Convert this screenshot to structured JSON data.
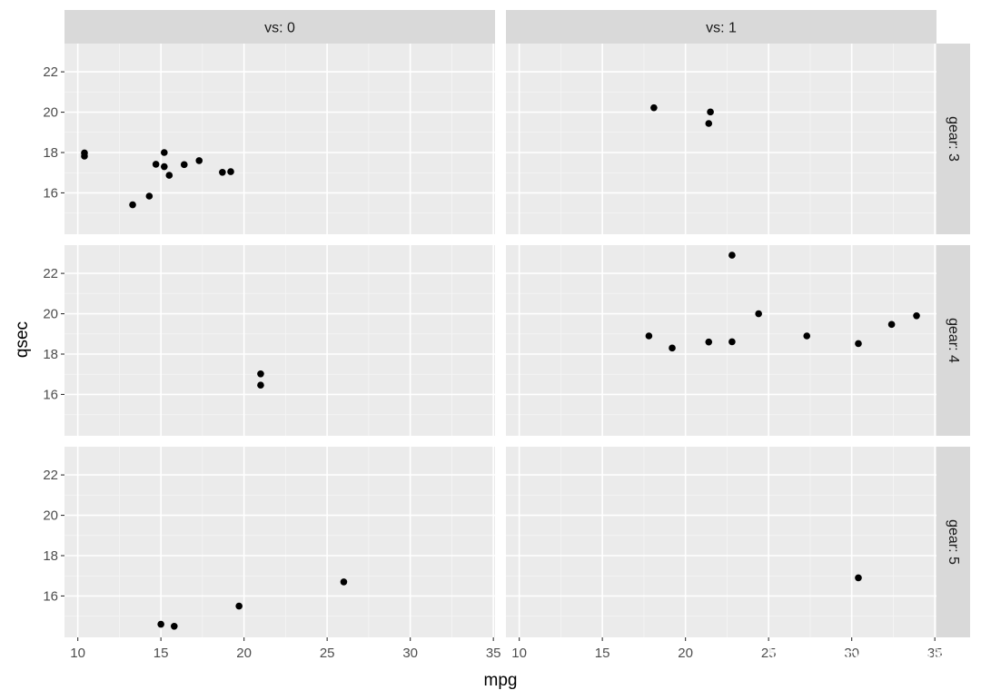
{
  "chart_data": {
    "type": "scatter",
    "title": "",
    "xlabel": "mpg",
    "ylabel": "qsec",
    "xlim": [
      9.2,
      35.1
    ],
    "ylim": [
      13.95,
      23.4
    ],
    "x_ticks": [
      10,
      15,
      20,
      25,
      30,
      35
    ],
    "y_ticks": [
      16,
      18,
      20,
      22
    ],
    "facet_cols": {
      "variable": "vs",
      "labels": [
        "vs: 0",
        "vs: 1"
      ]
    },
    "facet_rows": {
      "variable": "gear",
      "labels": [
        "gear: 3",
        "gear: 4",
        "gear: 5"
      ]
    },
    "grid": true,
    "legend": "none",
    "point_color": "#000000",
    "panel_bg": "#ebebeb",
    "strip_bg": "#d9d9d9",
    "panels": [
      {
        "row": 0,
        "col": 0,
        "points": [
          [
            10.4,
            17.98
          ],
          [
            10.4,
            17.82
          ],
          [
            13.3,
            15.41
          ],
          [
            14.3,
            15.84
          ],
          [
            14.7,
            17.42
          ],
          [
            15.2,
            17.3
          ],
          [
            15.2,
            18.0
          ],
          [
            15.5,
            16.87
          ],
          [
            16.4,
            17.4
          ],
          [
            17.3,
            17.6
          ],
          [
            18.7,
            17.02
          ],
          [
            19.2,
            17.05
          ]
        ]
      },
      {
        "row": 0,
        "col": 1,
        "points": [
          [
            18.1,
            20.22
          ],
          [
            21.4,
            19.44
          ],
          [
            21.5,
            20.01
          ]
        ]
      },
      {
        "row": 1,
        "col": 0,
        "points": [
          [
            21.0,
            16.46
          ],
          [
            21.0,
            17.02
          ]
        ]
      },
      {
        "row": 1,
        "col": 1,
        "points": [
          [
            17.8,
            18.9
          ],
          [
            19.2,
            18.3
          ],
          [
            21.4,
            18.6
          ],
          [
            22.8,
            18.61
          ],
          [
            22.8,
            22.9
          ],
          [
            24.4,
            20.0
          ],
          [
            27.3,
            18.9
          ],
          [
            30.4,
            18.52
          ],
          [
            32.4,
            19.47
          ],
          [
            33.9,
            19.9
          ]
        ]
      },
      {
        "row": 2,
        "col": 0,
        "points": [
          [
            15.0,
            14.6
          ],
          [
            15.8,
            14.5
          ],
          [
            19.7,
            15.5
          ],
          [
            26.0,
            16.7
          ]
        ]
      },
      {
        "row": 2,
        "col": 1,
        "points": [
          [
            30.4,
            16.9
          ]
        ]
      }
    ]
  },
  "watermark": "知乎 @R语言学堂"
}
